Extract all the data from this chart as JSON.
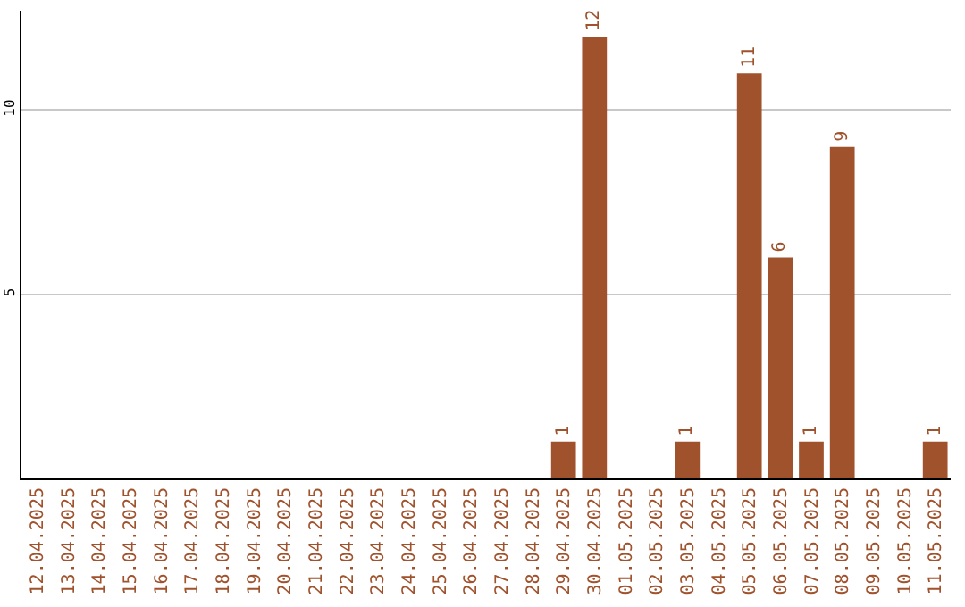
{
  "chart_data": {
    "type": "bar",
    "categories": [
      "12.04.2025",
      "13.04.2025",
      "14.04.2025",
      "15.04.2025",
      "16.04.2025",
      "17.04.2025",
      "18.04.2025",
      "19.04.2025",
      "20.04.2025",
      "21.04.2025",
      "22.04.2025",
      "23.04.2025",
      "24.04.2025",
      "25.04.2025",
      "26.04.2025",
      "27.04.2025",
      "28.04.2025",
      "29.04.2025",
      "30.04.2025",
      "01.05.2025",
      "02.05.2025",
      "03.05.2025",
      "04.05.2025",
      "05.05.2025",
      "06.05.2025",
      "07.05.2025",
      "08.05.2025",
      "09.05.2025",
      "10.05.2025",
      "11.05.2025"
    ],
    "values": [
      0,
      0,
      0,
      0,
      0,
      0,
      0,
      0,
      0,
      0,
      0,
      0,
      0,
      0,
      0,
      0,
      0,
      1,
      12,
      0,
      0,
      1,
      0,
      11,
      6,
      1,
      9,
      0,
      0,
      1
    ],
    "value_labels": [
      null,
      null,
      null,
      null,
      null,
      null,
      null,
      null,
      null,
      null,
      null,
      null,
      null,
      null,
      null,
      null,
      null,
      "1",
      "12",
      null,
      null,
      "1",
      null,
      "11",
      "6",
      "1",
      "9",
      null,
      null,
      "1"
    ],
    "color": "#a0522d",
    "ylim": [
      0,
      12.7
    ],
    "yticks": [
      5,
      10
    ],
    "grid": "y",
    "legend": false
  }
}
